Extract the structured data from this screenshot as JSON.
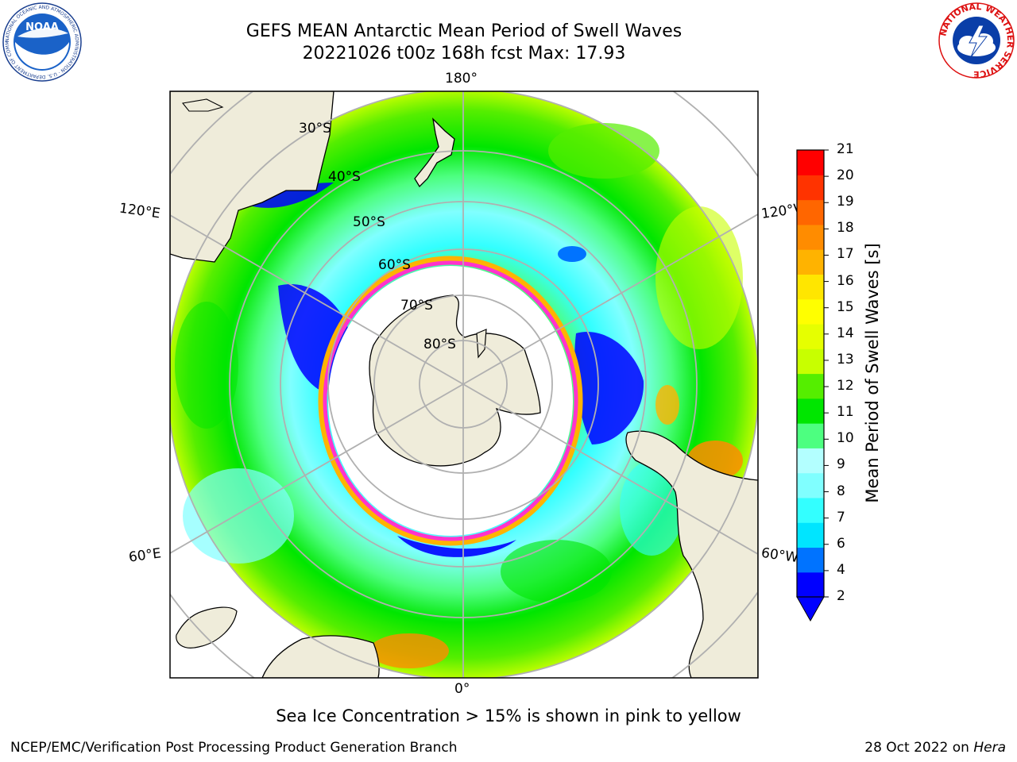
{
  "title": {
    "line1": "GEFS MEAN Antarctic Mean Period of Swell Waves",
    "line2": "20221026 t00z 168h fcst   Max: 17.93"
  },
  "map": {
    "projection": "south-polar-stereographic",
    "longitude_labels": [
      "180°",
      "120°E",
      "120°W",
      "60°E",
      "60°W",
      "0°"
    ],
    "latitude_labels": [
      "30°S",
      "40°S",
      "50°S",
      "60°S",
      "70°S",
      "80°S"
    ],
    "colors": {
      "land": "#efecda",
      "no_data": "#ffffff",
      "gridline": "#b0b0b0",
      "sea_ice_low": "#ff33cc",
      "sea_ice_high": "#ffcc33"
    }
  },
  "colorbar": {
    "label": "Mean Period of Swell Waves [s]",
    "ticks": [
      "2",
      "4",
      "6",
      "7",
      "8",
      "9",
      "10",
      "11",
      "12",
      "13",
      "14",
      "15",
      "16",
      "17",
      "18",
      "19",
      "20",
      "21"
    ],
    "colors": [
      "#0000ff",
      "#0073ff",
      "#00e5ff",
      "#33ffff",
      "#80ffff",
      "#b3ffff",
      "#4dff80",
      "#00e600",
      "#55ee00",
      "#c8ff00",
      "#e6ff00",
      "#ffff00",
      "#ffe600",
      "#ffb300",
      "#ff8c00",
      "#ff6600",
      "#ff3300",
      "#ff0000"
    ]
  },
  "caption": "Sea Ice Concentration > 15% is shown in pink to yellow",
  "footer": {
    "left": "NCEP/EMC/Verification Post Processing Product Generation Branch",
    "right_prefix": "28 Oct 2022 on ",
    "right_host": "Hera"
  },
  "logos": {
    "left": "NOAA",
    "left_ring": "NATIONAL OCEANIC AND ATMOSPHERIC ADMINISTRATION · U.S. DEPARTMENT OF COMMERCE",
    "right_ring": "NATIONAL WEATHER SERVICE"
  }
}
